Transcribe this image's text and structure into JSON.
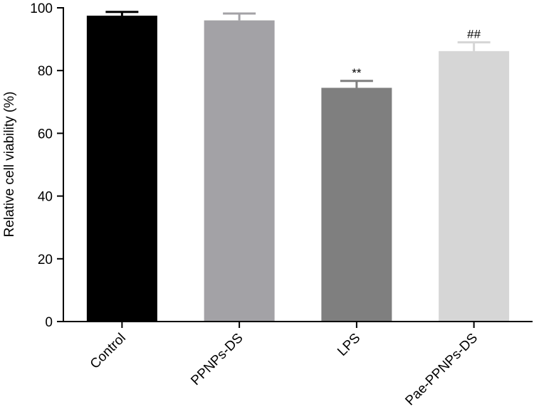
{
  "chart_data": {
    "type": "bar",
    "title": "",
    "xlabel": "",
    "ylabel": "Relative cell viability (%)",
    "ylim": [
      0,
      100
    ],
    "yticks": [
      "0",
      "20",
      "40",
      "60",
      "80",
      "100"
    ],
    "grid": false,
    "legend": "none",
    "categories": [
      "Control",
      "PPNPs-DS",
      "LPS",
      "Pae-PPNPs-DS"
    ],
    "values": [
      97.5,
      96.0,
      74.5,
      86.2
    ],
    "errors": [
      1.2,
      2.2,
      2.2,
      2.8
    ],
    "significance": [
      "",
      "",
      "**",
      "##"
    ],
    "colors": [
      "#000000",
      "#a3a2a6",
      "#7f7f7f",
      "#d6d6d6"
    ]
  }
}
